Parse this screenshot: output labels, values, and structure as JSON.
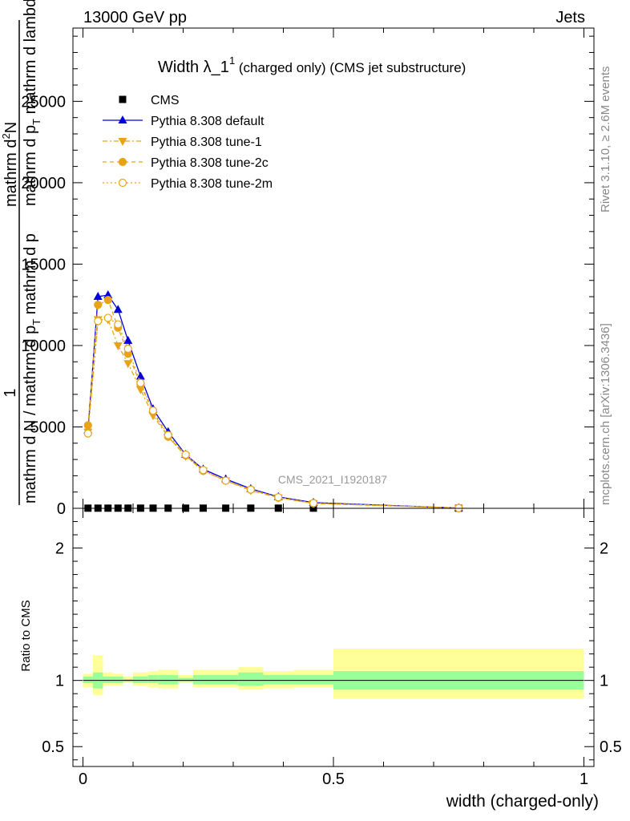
{
  "header": {
    "left": "13000 GeV pp",
    "right": "Jets"
  },
  "side_labels": {
    "right_top": "Rivet 3.1.10, ≥ 2.6M events",
    "right_bottom": "mcplots.cern.ch [arXiv:1306.3436]"
  },
  "watermark": "CMS_2021_I1920187",
  "chart_data": [
    {
      "type": "line",
      "title_main": "Width λ_1",
      "title_sup": "1",
      "title_rest": " (charged only) (CMS jet substructure)",
      "ylabel_parts": {
        "numerator": "1",
        "denominator": "mathrm d N / mathrm d p",
        "denominator_sub": "T",
        "denominator_tail": " mathrm d p",
        "lambda_line1": "mathrm d",
        "lambda_sup": "2",
        "lambda_line2": "N",
        "lambda_line3": "mathrm d p",
        "lambda_sub": "T",
        "lambda_line4": " mathrm d lambda"
      },
      "xlim": [
        -0.02,
        1.02
      ],
      "ylim": [
        0,
        29500
      ],
      "yticks": [
        {
          "v": 0,
          "label": "0"
        },
        {
          "v": 5000,
          "label": "5000"
        },
        {
          "v": 10000,
          "label": "10000"
        },
        {
          "v": 15000,
          "label": "15000"
        },
        {
          "v": 20000,
          "label": "20000"
        },
        {
          "v": 25000,
          "label": "25000"
        }
      ],
      "legend": [
        {
          "key": "cms",
          "label": "CMS"
        },
        {
          "key": "def",
          "label": "Pythia 8.308 default"
        },
        {
          "key": "t1",
          "label": "Pythia 8.308 tune-1"
        },
        {
          "key": "t2c",
          "label": "Pythia 8.308 tune-2c"
        },
        {
          "key": "t2m",
          "label": "Pythia 8.308 tune-2m"
        }
      ],
      "x": [
        0.01,
        0.03,
        0.05,
        0.07,
        0.09,
        0.115,
        0.14,
        0.17,
        0.205,
        0.24,
        0.285,
        0.335,
        0.39,
        0.46,
        0.75
      ],
      "series": [
        {
          "key": "cms",
          "name": "CMS",
          "color": "#000000",
          "values": [
            10,
            10,
            10,
            10,
            10,
            10,
            10,
            10,
            10,
            10,
            10,
            10,
            10,
            10,
            10
          ]
        },
        {
          "key": "def",
          "name": "Pythia 8.308 default",
          "color": "#0000dd",
          "values": [
            4800,
            13000,
            13100,
            12200,
            10300,
            8100,
            6100,
            4700,
            3300,
            2400,
            1800,
            1200,
            700,
            350,
            20
          ]
        },
        {
          "key": "t1",
          "name": "Pythia 8.308 tune-1",
          "color": "#e8a317",
          "values": [
            4700,
            11600,
            11600,
            10000,
            8900,
            7300,
            5700,
            4400,
            3200,
            2300,
            1700,
            1100,
            650,
            300,
            20
          ]
        },
        {
          "key": "t2c",
          "name": "Pythia 8.308 tune-2c",
          "color": "#e8a317",
          "values": [
            5100,
            12500,
            12800,
            11100,
            9500,
            7600,
            5900,
            4400,
            3250,
            2300,
            1700,
            1150,
            650,
            300,
            20
          ]
        },
        {
          "key": "t2m",
          "name": "Pythia 8.308 tune-2m",
          "color": "#e8a317",
          "values": [
            4600,
            11500,
            11700,
            11300,
            9800,
            7700,
            6000,
            4500,
            3300,
            2350,
            1700,
            1150,
            680,
            320,
            20
          ]
        }
      ]
    },
    {
      "type": "area",
      "ylabel": "Ratio to CMS",
      "xlabel": "width (charged-only)",
      "xlim": [
        -0.02,
        1.02
      ],
      "ylim": [
        0.35,
        2.3
      ],
      "xticks": [
        {
          "v": 0,
          "label": "0"
        },
        {
          "v": 0.5,
          "label": "0.5"
        },
        {
          "v": 1,
          "label": "1"
        }
      ],
      "yticks": [
        {
          "v": 0.5,
          "label": "0.5"
        },
        {
          "v": 1,
          "label": "1"
        },
        {
          "v": 2,
          "label": "2"
        }
      ],
      "bins": [
        0,
        0.02,
        0.04,
        0.06,
        0.08,
        0.1,
        0.13,
        0.15,
        0.19,
        0.22,
        0.26,
        0.31,
        0.36,
        0.42,
        0.5,
        1.0
      ],
      "stat_lo": [
        0.98,
        0.94,
        0.98,
        0.98,
        0.99,
        0.98,
        0.98,
        0.97,
        0.99,
        0.97,
        0.97,
        0.96,
        0.97,
        0.97,
        0.93
      ],
      "stat_hi": [
        1.03,
        1.06,
        1.03,
        1.03,
        1.01,
        1.03,
        1.04,
        1.04,
        1.02,
        1.04,
        1.04,
        1.06,
        1.04,
        1.04,
        1.07
      ],
      "sys_lo": [
        0.95,
        0.89,
        0.96,
        0.96,
        0.98,
        0.96,
        0.95,
        0.94,
        0.98,
        0.95,
        0.95,
        0.93,
        0.94,
        0.95,
        0.86
      ],
      "sys_hi": [
        1.05,
        1.19,
        1.06,
        1.05,
        1.03,
        1.06,
        1.07,
        1.08,
        1.04,
        1.08,
        1.08,
        1.1,
        1.07,
        1.08,
        1.24
      ],
      "colors": {
        "stat": "#99ff99",
        "sys": "#ffff99"
      }
    }
  ]
}
